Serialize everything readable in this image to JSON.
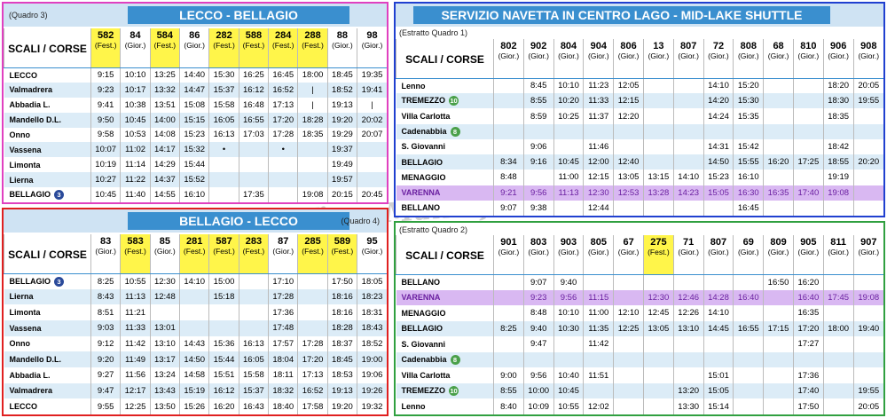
{
  "watermark": "www.Vivre-Malin.fr",
  "panels": [
    {
      "quadro": "(Quadro 3)",
      "title": "LECCO - BELLAGIO",
      "corner_label": "SCALI / CORSE",
      "highlight_row": null,
      "columns": [
        {
          "num": "582",
          "type": "(Fest.)"
        },
        {
          "num": "84",
          "type": "(Gior.)"
        },
        {
          "num": "584",
          "type": "(Fest.)"
        },
        {
          "num": "86",
          "type": "(Gior.)"
        },
        {
          "num": "282",
          "type": "(Fest.)"
        },
        {
          "num": "588",
          "type": "(Fest.)"
        },
        {
          "num": "284",
          "type": "(Fest.)"
        },
        {
          "num": "288",
          "type": "(Fest.)"
        },
        {
          "num": "88",
          "type": "(Gior.)"
        },
        {
          "num": "98",
          "type": "(Gior.)"
        }
      ],
      "rows": [
        {
          "stop": "LECCO",
          "times": [
            "9:15",
            "10:10",
            "13:25",
            "14:40",
            "15:30",
            "16:25",
            "16:45",
            "18:00",
            "18:45",
            "19:35"
          ]
        },
        {
          "stop": "Valmadrera",
          "times": [
            "9:23",
            "10:17",
            "13:32",
            "14:47",
            "15:37",
            "16:12",
            "16:52",
            "|",
            "18:52",
            "19:41"
          ]
        },
        {
          "stop": "Abbadia L.",
          "times": [
            "9:41",
            "10:38",
            "13:51",
            "15:08",
            "15:58",
            "16:48",
            "17:13",
            "|",
            "19:13",
            "|"
          ]
        },
        {
          "stop": "Mandello D.L.",
          "times": [
            "9:50",
            "10:45",
            "14:00",
            "15:15",
            "16:05",
            "16:55",
            "17:20",
            "18:28",
            "19:20",
            "20:02"
          ]
        },
        {
          "stop": "Onno",
          "times": [
            "9:58",
            "10:53",
            "14:08",
            "15:23",
            "16:13",
            "17:03",
            "17:28",
            "18:35",
            "19:29",
            "20:07"
          ]
        },
        {
          "stop": "Vassena",
          "times": [
            "10:07",
            "11:02",
            "14:17",
            "15:32",
            "•",
            null,
            "•",
            null,
            "19:37",
            null
          ]
        },
        {
          "stop": "Limonta",
          "times": [
            "10:19",
            "11:14",
            "14:29",
            "15:44",
            null,
            null,
            null,
            null,
            "19:49",
            null
          ]
        },
        {
          "stop": "Lierna",
          "times": [
            "10:27",
            "11:22",
            "14:37",
            "15:52",
            null,
            null,
            null,
            null,
            "19:57",
            null
          ]
        },
        {
          "stop": "BELLAGIO",
          "badge": "3",
          "times": [
            "10:45",
            "11:40",
            "14:55",
            "16:10",
            null,
            "17:35",
            null,
            "19:08",
            "20:15",
            "20:45"
          ]
        }
      ]
    },
    {
      "quadro": "(Quadro 4)",
      "title": "BELLAGIO - LECCO",
      "corner_label": "SCALI / CORSE",
      "highlight_row": null,
      "columns": [
        {
          "num": "83",
          "type": "(Gior.)"
        },
        {
          "num": "583",
          "type": "(Fest.)"
        },
        {
          "num": "85",
          "type": "(Gior.)"
        },
        {
          "num": "281",
          "type": "(Fest.)"
        },
        {
          "num": "587",
          "type": "(Fest.)"
        },
        {
          "num": "283",
          "type": "(Fest.)"
        },
        {
          "num": "87",
          "type": "(Gior.)"
        },
        {
          "num": "285",
          "type": "(Fest.)"
        },
        {
          "num": "589",
          "type": "(Fest.)"
        },
        {
          "num": "95",
          "type": "(Gior.)"
        }
      ],
      "rows": [
        {
          "stop": "BELLAGIO",
          "badge": "3",
          "times": [
            "8:25",
            "10:55",
            "12:30",
            "14:10",
            "15:00",
            null,
            "17:10",
            null,
            "17:50",
            "18:05"
          ]
        },
        {
          "stop": "Lierna",
          "times": [
            "8:43",
            "11:13",
            "12:48",
            null,
            "15:18",
            null,
            "17:28",
            null,
            "18:16",
            "18:23"
          ]
        },
        {
          "stop": "Limonta",
          "times": [
            "8:51",
            "11:21",
            null,
            null,
            null,
            null,
            "17:36",
            null,
            "18:16",
            "18:31"
          ]
        },
        {
          "stop": "Vassena",
          "times": [
            "9:03",
            "11:33",
            "13:01",
            null,
            null,
            null,
            "17:48",
            null,
            "18:28",
            "18:43"
          ]
        },
        {
          "stop": "Onno",
          "times": [
            "9:12",
            "11:42",
            "13:10",
            "14:43",
            "15:36",
            "16:13",
            "17:57",
            "17:28",
            "18:37",
            "18:52"
          ]
        },
        {
          "stop": "Mandello D.L.",
          "times": [
            "9:20",
            "11:49",
            "13:17",
            "14:50",
            "15:44",
            "16:05",
            "18:04",
            "17:20",
            "18:45",
            "19:00"
          ]
        },
        {
          "stop": "Abbadia L.",
          "times": [
            "9:27",
            "11:56",
            "13:24",
            "14:58",
            "15:51",
            "15:58",
            "18:11",
            "17:13",
            "18:53",
            "19:06"
          ]
        },
        {
          "stop": "Valmadrera",
          "times": [
            "9:47",
            "12:17",
            "13:43",
            "15:19",
            "16:12",
            "15:37",
            "18:32",
            "16:52",
            "19:13",
            "19:26"
          ]
        },
        {
          "stop": "LECCO",
          "times": [
            "9:55",
            "12:25",
            "13:50",
            "15:26",
            "16:20",
            "16:43",
            "18:40",
            "17:58",
            "19:20",
            "19:32"
          ]
        }
      ]
    },
    {
      "quadro": "(Estratto Quadro 1)",
      "title": "SERVIZIO NAVETTA IN CENTRO LAGO  -  MID-LAKE SHUTTLE",
      "corner_label": "SCALI / CORSE",
      "highlight_row": 7,
      "columns": [
        {
          "num": "802",
          "type": "(Gior.)"
        },
        {
          "num": "902",
          "type": "(Gior.)"
        },
        {
          "num": "804",
          "type": "(Gior.)"
        },
        {
          "num": "904",
          "type": "(Gior.)"
        },
        {
          "num": "806",
          "type": "(Gior.)"
        },
        {
          "num": "13",
          "type": "(Gior.)"
        },
        {
          "num": "807",
          "type": "(Gior.)"
        },
        {
          "num": "72",
          "type": "(Gior.)"
        },
        {
          "num": "808",
          "type": "(Gior.)"
        },
        {
          "num": "68",
          "type": "(Gior.)"
        },
        {
          "num": "810",
          "type": "(Gior.)"
        },
        {
          "num": "906",
          "type": "(Gior.)"
        },
        {
          "num": "908",
          "type": "(Gior.)"
        }
      ],
      "rows": [
        {
          "stop": "Lenno",
          "times": [
            null,
            "8:45",
            "10:10",
            "11:23",
            "12:05",
            null,
            null,
            "14:10",
            "15:20",
            null,
            null,
            "18:20",
            "20:05"
          ]
        },
        {
          "stop": "TREMEZZO",
          "badge": "10",
          "times": [
            null,
            "8:55",
            "10:20",
            "11:33",
            "12:15",
            null,
            null,
            "14:20",
            "15:30",
            null,
            null,
            "18:30",
            "19:55"
          ]
        },
        {
          "stop": "Villa Carlotta",
          "times": [
            null,
            "8:59",
            "10:25",
            "11:37",
            "12:20",
            null,
            null,
            "14:24",
            "15:35",
            null,
            null,
            "18:35",
            null
          ]
        },
        {
          "stop": "Cadenabbia",
          "badge": "8",
          "times": [
            null,
            null,
            null,
            null,
            null,
            null,
            null,
            null,
            null,
            null,
            null,
            null,
            null
          ]
        },
        {
          "stop": "S. Giovanni",
          "times": [
            null,
            "9:06",
            null,
            "11:46",
            null,
            null,
            null,
            "14:31",
            "15:42",
            null,
            null,
            "18:42",
            null
          ]
        },
        {
          "stop": "BELLAGIO",
          "times": [
            "8:34",
            "9:16",
            "10:45",
            "12:00",
            "12:40",
            null,
            null,
            "14:50",
            "15:55",
            "16:20",
            "17:25",
            "18:55",
            "20:20"
          ]
        },
        {
          "stop": "MENAGGIO",
          "times": [
            "8:48",
            null,
            "11:00",
            "12:15",
            "13:05",
            "13:15",
            "14:10",
            "15:23",
            "16:10",
            null,
            null,
            "19:19",
            null
          ]
        },
        {
          "stop": "VARENNA",
          "times": [
            "9:21",
            "9:56",
            "11:13",
            "12:30",
            "12:53",
            "13:28",
            "14:23",
            "15:05",
            "16:30",
            "16:35",
            "17:40",
            "19:08",
            null
          ]
        },
        {
          "stop": "BELLANO",
          "times": [
            "9:07",
            "9:38",
            null,
            "12:44",
            null,
            null,
            null,
            null,
            "16:45",
            null,
            null,
            null,
            null
          ]
        }
      ]
    },
    {
      "quadro": "(Estratto Quadro 2)",
      "title": null,
      "corner_label": "SCALI / CORSE",
      "highlight_row": 1,
      "columns": [
        {
          "num": "901",
          "type": "(Gior.)"
        },
        {
          "num": "803",
          "type": "(Gior.)"
        },
        {
          "num": "903",
          "type": "(Gior.)"
        },
        {
          "num": "805",
          "type": "(Gior.)"
        },
        {
          "num": "67",
          "type": "(Gior.)"
        },
        {
          "num": "275",
          "type": "(Fest.)"
        },
        {
          "num": "71",
          "type": "(Gior.)"
        },
        {
          "num": "807",
          "type": "(Gior.)"
        },
        {
          "num": "69",
          "type": "(Gior.)"
        },
        {
          "num": "809",
          "type": "(Gior.)"
        },
        {
          "num": "905",
          "type": "(Gior.)"
        },
        {
          "num": "811",
          "type": "(Gior.)"
        },
        {
          "num": "907",
          "type": "(Gior.)"
        }
      ],
      "rows": [
        {
          "stop": "BELLANO",
          "times": [
            null,
            "9:07",
            "9:40",
            null,
            null,
            null,
            null,
            null,
            null,
            "16:50",
            "16:20",
            null,
            null
          ]
        },
        {
          "stop": "VARENNA",
          "times": [
            null,
            "9:23",
            "9:56",
            "11:15",
            null,
            "12:30",
            "12:46",
            "14:28",
            "16:40",
            null,
            "16:40",
            "17:45",
            "19:08"
          ]
        },
        {
          "stop": "MENAGGIO",
          "times": [
            null,
            "8:48",
            "10:10",
            "11:00",
            "12:10",
            "12:45",
            "12:26",
            "14:10",
            null,
            null,
            "16:35",
            null,
            null
          ]
        },
        {
          "stop": "BELLAGIO",
          "times": [
            "8:25",
            "9:40",
            "10:30",
            "11:35",
            "12:25",
            "13:05",
            "13:10",
            "14:45",
            "16:55",
            "17:15",
            "17:20",
            "18:00",
            "19:40"
          ]
        },
        {
          "stop": "S. Giovanni",
          "times": [
            null,
            "9:47",
            null,
            "11:42",
            null,
            null,
            null,
            null,
            null,
            null,
            "17:27",
            null,
            null
          ]
        },
        {
          "stop": "Cadenabbia",
          "badge": "8",
          "times": [
            null,
            null,
            null,
            null,
            null,
            null,
            null,
            null,
            null,
            null,
            null,
            null,
            null
          ]
        },
        {
          "stop": "Villa Carlotta",
          "times": [
            "9:00",
            "9:56",
            "10:40",
            "11:51",
            null,
            null,
            null,
            "15:01",
            null,
            null,
            "17:36",
            null,
            null
          ]
        },
        {
          "stop": "TREMEZZO",
          "badge": "10",
          "times": [
            "8:55",
            "10:00",
            "10:45",
            null,
            null,
            null,
            "13:20",
            "15:05",
            null,
            null,
            "17:40",
            null,
            "19:55"
          ]
        },
        {
          "stop": "Lenno",
          "times": [
            "8:40",
            "10:09",
            "10:55",
            "12:02",
            null,
            null,
            "13:30",
            "15:14",
            null,
            null,
            "17:50",
            null,
            "20:05"
          ]
        }
      ]
    }
  ]
}
